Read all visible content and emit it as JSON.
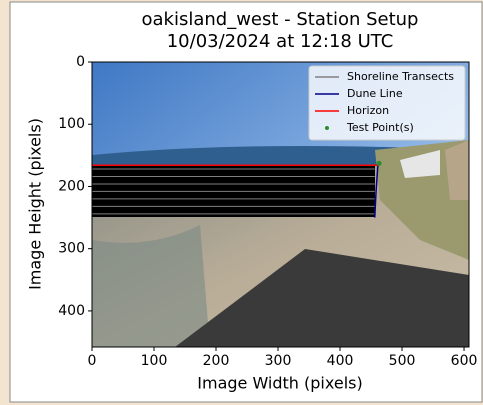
{
  "chart_data": {
    "type": "line",
    "title": [
      "oakisland_west - Station Setup",
      "10/03/2024 at 12:18 UTC"
    ],
    "xlabel": "Image Width (pixels)",
    "ylabel": "Image Height (pixels)",
    "xlim": [
      0,
      608
    ],
    "ylim": [
      458,
      0
    ],
    "xticks": [
      0,
      100,
      200,
      300,
      400,
      500,
      600
    ],
    "yticks": [
      0,
      100,
      200,
      300,
      400
    ],
    "legend": "upper right",
    "series": [
      {
        "name": "Shoreline Transects",
        "color": "#808080",
        "kind": "lines",
        "lines": [
          {
            "x": [
              0,
              456
            ],
            "values": [
              172,
              172
            ]
          },
          {
            "x": [
              0,
              456
            ],
            "values": [
              184,
              184
            ]
          },
          {
            "x": [
              0,
              456
            ],
            "values": [
              196,
              196
            ]
          },
          {
            "x": [
              0,
              456
            ],
            "values": [
              208,
              208
            ]
          },
          {
            "x": [
              0,
              456
            ],
            "values": [
              220,
              220
            ]
          },
          {
            "x": [
              0,
              456
            ],
            "values": [
              232,
              232
            ]
          },
          {
            "x": [
              0,
              456
            ],
            "values": [
              244,
              244
            ]
          }
        ]
      },
      {
        "name": "Dune Line",
        "color": "#00008b",
        "kind": "line",
        "x": [
          456,
          458,
          461
        ],
        "values": [
          250,
          210,
          166
        ]
      },
      {
        "name": "Horizon",
        "color": "#ff0000",
        "kind": "line",
        "x": [
          0,
          461
        ],
        "values": [
          166,
          166
        ]
      },
      {
        "name": "Test Point(s)",
        "color": "#2e8b2e",
        "kind": "scatter",
        "x": [
          463
        ],
        "values": [
          163
        ]
      }
    ]
  }
}
